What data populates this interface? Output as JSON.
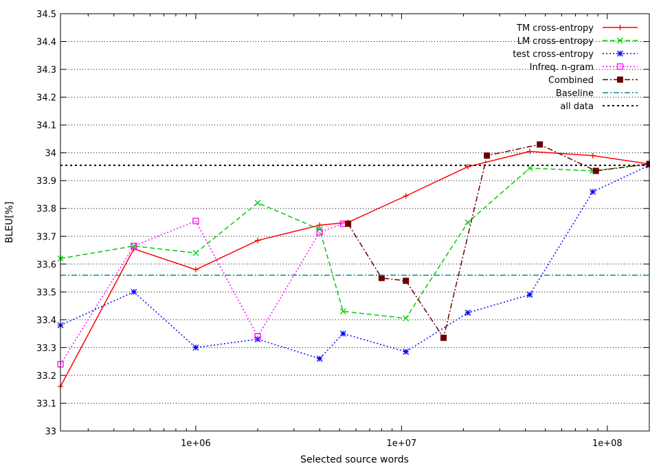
{
  "chart_data": {
    "type": "line",
    "xlabel": "Selected source words",
    "ylabel": "BLEU[%]",
    "x_scale": "log",
    "xlim": [
      220000,
      160000000
    ],
    "ylim": [
      33,
      34.5
    ],
    "grid": "horizontal",
    "legend_position": "top-right",
    "x_ticks": [
      {
        "value": 1000000,
        "label": "1e+06"
      },
      {
        "value": 10000000,
        "label": "1e+07"
      },
      {
        "value": 100000000,
        "label": "1e+08"
      }
    ],
    "y_ticks": [
      "33",
      "33.1",
      "33.2",
      "33.3",
      "33.4",
      "33.5",
      "33.6",
      "33.7",
      "33.8",
      "33.9",
      "34",
      "34.1",
      "34.2",
      "34.3",
      "34.4",
      "34.5"
    ],
    "series": [
      {
        "name": "TM cross-entropy",
        "color": "#ff0000",
        "dash": "solid",
        "marker": "plus",
        "points": [
          [
            220000,
            33.16
          ],
          [
            500000,
            33.655
          ],
          [
            1000000,
            33.58
          ],
          [
            2000000,
            33.685
          ],
          [
            4000000,
            33.74
          ],
          [
            5500000,
            33.75
          ],
          [
            10500000,
            33.845
          ],
          [
            21000000,
            33.95
          ],
          [
            42000000,
            34.005
          ],
          [
            85000000,
            33.99
          ],
          [
            160000000,
            33.96
          ]
        ]
      },
      {
        "name": "LM cross-entropy",
        "color": "#00cc00",
        "dash": "dashed",
        "marker": "cross",
        "points": [
          [
            220000,
            33.62
          ],
          [
            500000,
            33.665
          ],
          [
            1000000,
            33.64
          ],
          [
            2000000,
            33.82
          ],
          [
            4000000,
            33.725
          ],
          [
            5200000,
            33.43
          ],
          [
            10500000,
            33.405
          ],
          [
            21000000,
            33.75
          ],
          [
            42000000,
            33.945
          ],
          [
            85000000,
            33.935
          ],
          [
            160000000,
            33.96
          ]
        ]
      },
      {
        "name": "test cross-entropy",
        "color": "#0000ff",
        "dash": "dotted",
        "marker": "star",
        "points": [
          [
            220000,
            33.38
          ],
          [
            500000,
            33.5
          ],
          [
            1000000,
            33.3
          ],
          [
            2000000,
            33.33
          ],
          [
            4000000,
            33.26
          ],
          [
            5200000,
            33.35
          ],
          [
            10500000,
            33.285
          ],
          [
            21000000,
            33.425
          ],
          [
            42000000,
            33.49
          ],
          [
            85000000,
            33.86
          ],
          [
            160000000,
            33.955
          ]
        ]
      },
      {
        "name": "Infreq. n-gram",
        "color": "#ff00ff",
        "dash": "dotted",
        "marker": "open-square",
        "points": [
          [
            220000,
            33.24
          ],
          [
            500000,
            33.665
          ],
          [
            1000000,
            33.755
          ],
          [
            2000000,
            33.34
          ],
          [
            4000000,
            33.715
          ],
          [
            5200000,
            33.745
          ]
        ]
      },
      {
        "name": "Combined",
        "color": "#6b0000",
        "dash": "dashdot",
        "marker": "filled-square",
        "points": [
          [
            5500000,
            33.745
          ],
          [
            8000000,
            33.55
          ],
          [
            10500000,
            33.54
          ],
          [
            16000000,
            33.335
          ],
          [
            26000000,
            33.99
          ],
          [
            47000000,
            34.03
          ],
          [
            88000000,
            33.935
          ],
          [
            160000000,
            33.96
          ]
        ]
      },
      {
        "name": "Baseline",
        "color": "#008b8b",
        "dash": "dashdot",
        "marker": "none",
        "value": 33.56
      },
      {
        "name": "all data",
        "color": "#000000",
        "dash": "dotted",
        "marker": "none",
        "value": 33.955
      }
    ]
  }
}
